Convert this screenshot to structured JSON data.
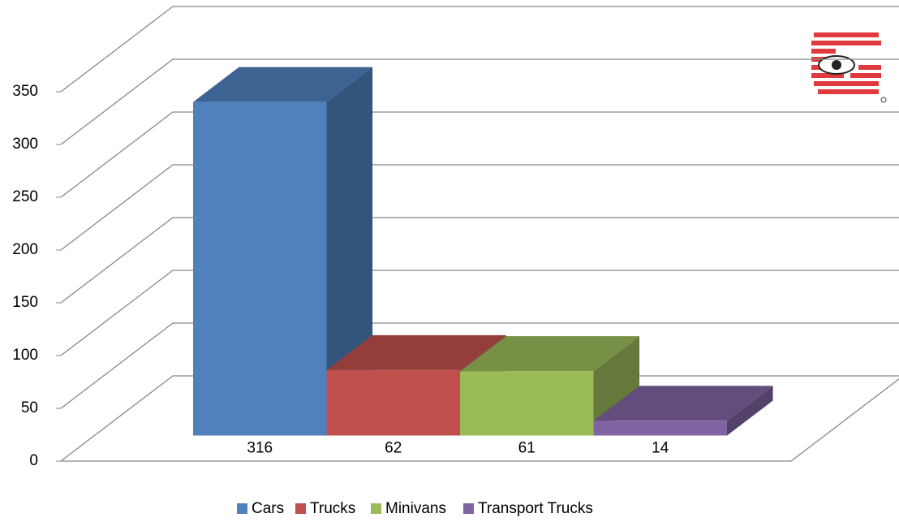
{
  "chart_data": {
    "type": "bar3d",
    "series": [
      {
        "name": "Cars",
        "color": "#4f81bd",
        "values": [
          316
        ]
      },
      {
        "name": "Trucks",
        "color": "#c0504d",
        "values": [
          62
        ]
      },
      {
        "name": "Minivans",
        "color": "#9bbb59",
        "values": [
          61
        ]
      },
      {
        "name": "Transport Trucks",
        "color": "#8064a2",
        "values": [
          14
        ]
      }
    ],
    "ylim": [
      0,
      350
    ],
    "yticks": [
      0,
      50,
      100,
      150,
      200,
      250,
      300,
      350
    ],
    "grid": true,
    "legend": "bottom"
  }
}
